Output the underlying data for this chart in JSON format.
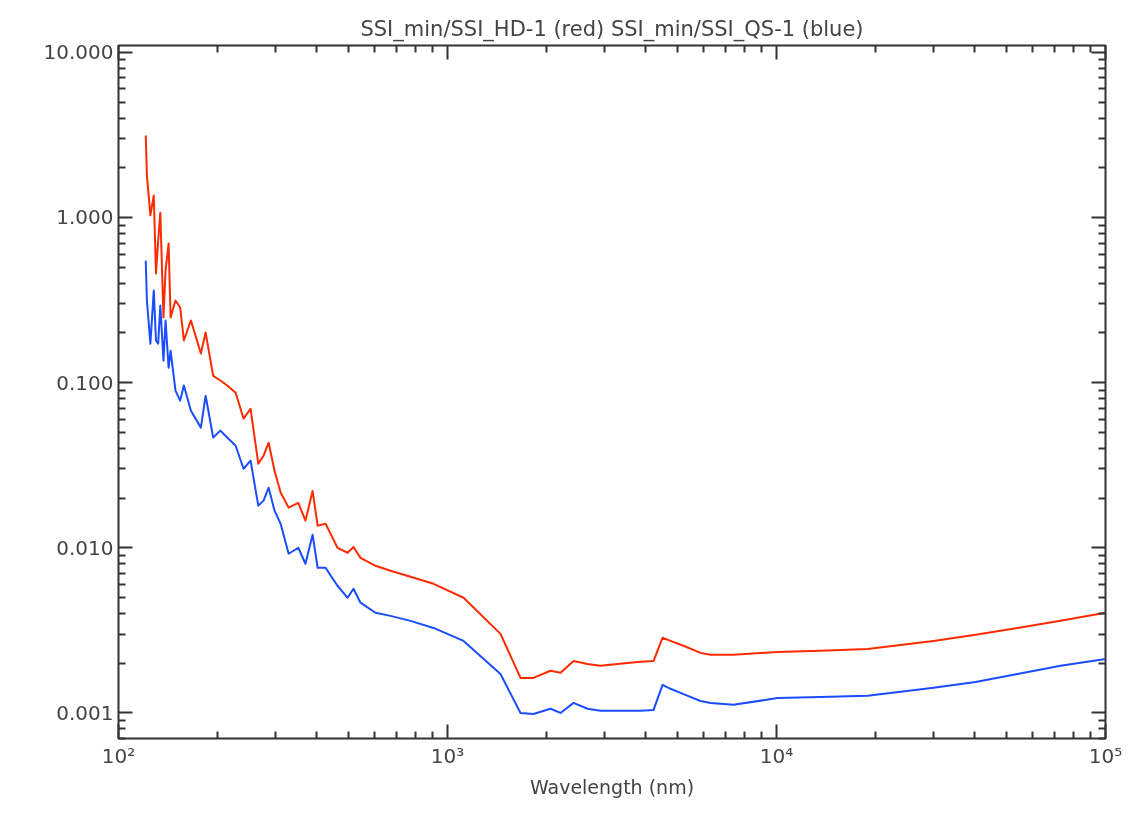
{
  "chart_data": {
    "type": "line",
    "title": "SSI_min/SSI_HD-1 (red) SSI_min/SSI_QS-1 (blue)",
    "xlabel": "Wavelength (nm)",
    "log": "xy",
    "grid": false,
    "legend": false,
    "xlim": [
      100,
      100000
    ],
    "ylim": [
      0.0007,
      11
    ],
    "xticks": [
      {
        "value": 100,
        "label": "10²"
      },
      {
        "value": 1000,
        "label": "10³"
      },
      {
        "value": 10000,
        "label": "10⁴"
      },
      {
        "value": 100000,
        "label": "10⁵"
      }
    ],
    "yticks": [
      {
        "value": 0.001,
        "label": "0.001"
      },
      {
        "value": 0.01,
        "label": "0.010"
      },
      {
        "value": 0.1,
        "label": "0.100"
      },
      {
        "value": 1,
        "label": "1.000"
      },
      {
        "value": 10,
        "label": "10.000"
      }
    ],
    "x": [
      121,
      122,
      125,
      128,
      130,
      132,
      134,
      137,
      139,
      142,
      144,
      149,
      154,
      158,
      166,
      178,
      184,
      194,
      204,
      214,
      227,
      240,
      252,
      266,
      276,
      286,
      298,
      311,
      329,
      352,
      370,
      389,
      403,
      426,
      463,
      497,
      518,
      544,
      604,
      671,
      772,
      907,
      1119,
      1449,
      1667,
      1825,
      2056,
      2206,
      2416,
      2665,
      2917,
      3286,
      3862,
      4228,
      4504,
      4762,
      5217,
      5875,
      6302,
      7401,
      10070,
      13610,
      18910,
      30010,
      40270,
      54020,
      72990,
      100000
    ],
    "series": [
      {
        "color": "#ff2a00",
        "values": [
          3.14,
          1.8,
          1.03,
          1.36,
          0.458,
          0.726,
          1.07,
          0.248,
          0.477,
          0.695,
          0.248,
          0.314,
          0.285,
          0.18,
          0.238,
          0.15,
          0.201,
          0.11,
          0.103,
          0.096,
          0.0869,
          0.0605,
          0.0695,
          0.0323,
          0.0361,
          0.0433,
          0.0293,
          0.0216,
          0.0175,
          0.0187,
          0.0146,
          0.0221,
          0.0136,
          0.014,
          0.01,
          0.00933,
          0.0101,
          0.00869,
          0.00778,
          0.00726,
          0.00667,
          0.00605,
          0.00498,
          0.00301,
          0.00163,
          0.00163,
          0.0018,
          0.00175,
          0.00206,
          0.00198,
          0.00193,
          0.00198,
          0.00204,
          0.00206,
          0.00285,
          0.00273,
          0.00255,
          0.00231,
          0.00225,
          0.00225,
          0.00234,
          0.00238,
          0.00244,
          0.00273,
          0.00297,
          0.00327,
          0.00361,
          0.00404
        ]
      },
      {
        "color": "#1a4dff",
        "values": [
          0.548,
          0.314,
          0.172,
          0.361,
          0.18,
          0.172,
          0.293,
          0.136,
          0.238,
          0.123,
          0.156,
          0.0895,
          0.0778,
          0.096,
          0.0676,
          0.0534,
          0.0834,
          0.0465,
          0.0512,
          0.0465,
          0.0415,
          0.0301,
          0.0337,
          0.018,
          0.0193,
          0.0231,
          0.0168,
          0.014,
          0.0092,
          0.01,
          0.008,
          0.012,
          0.00757,
          0.00757,
          0.00589,
          0.00498,
          0.00565,
          0.00465,
          0.00404,
          0.00387,
          0.00361,
          0.00327,
          0.00273,
          0.00172,
          0.001,
          0.000986,
          0.00106,
          0.001,
          0.00115,
          0.00106,
          0.00103,
          0.00103,
          0.00103,
          0.00104,
          0.00148,
          0.0014,
          0.0013,
          0.00118,
          0.00115,
          0.00112,
          0.00123,
          0.00125,
          0.00127,
          0.00142,
          0.00154,
          0.00172,
          0.00193,
          0.00212
        ]
      }
    ]
  }
}
